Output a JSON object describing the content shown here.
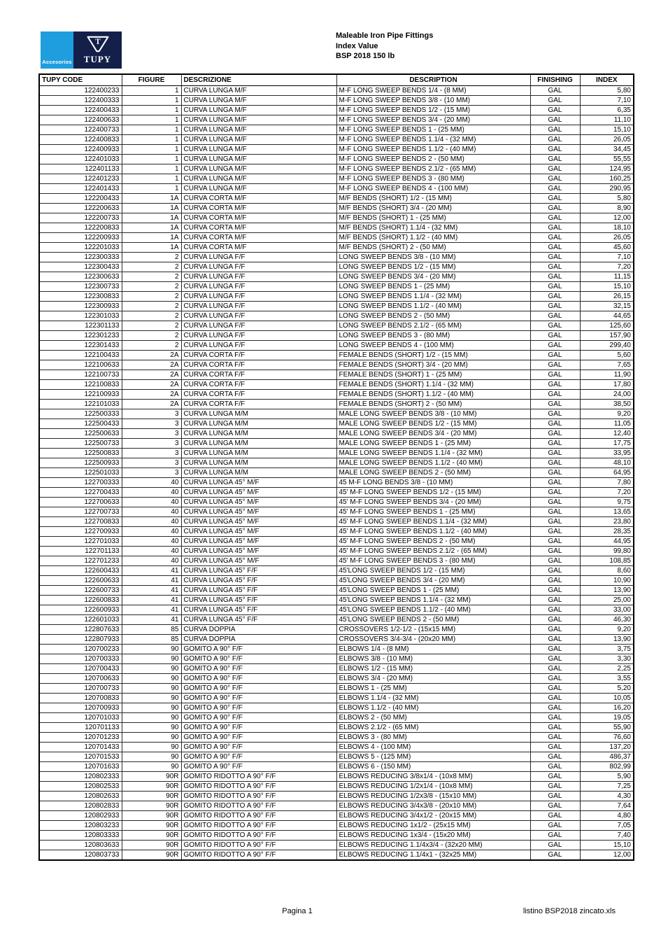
{
  "header": {
    "logo": {
      "accesorios_label": "Accesorios",
      "tupy_label": "TUPY"
    },
    "title_lines": [
      "Maleable Iron Pipe Fittings",
      "Index Value",
      "BSP 2018 150 lb"
    ]
  },
  "colors": {
    "logo_light_blue": "#1E9EDE",
    "logo_navy": "#14204A"
  },
  "table": {
    "headers": [
      "TUPY CODE",
      "FIGURE",
      "DESCRIZIONE",
      "DESCRIPTION",
      "FINISHING",
      "INDEX"
    ],
    "rows": [
      [
        "122400233",
        "1",
        "CURVA LUNGA M/F",
        "M-F LONG SWEEP BENDS 1/4 - (8 MM)",
        "GAL",
        "5,80"
      ],
      [
        "122400333",
        "1",
        "CURVA LUNGA M/F",
        "M-F LONG SWEEP BENDS 3/8 - (10 MM)",
        "GAL",
        "7,10"
      ],
      [
        "122400433",
        "1",
        "CURVA LUNGA M/F",
        "M-F LONG SWEEP BENDS 1/2 - (15 MM)",
        "GAL",
        "6,35"
      ],
      [
        "122400633",
        "1",
        "CURVA LUNGA M/F",
        "M-F LONG SWEEP BENDS 3/4 - (20 MM)",
        "GAL",
        "11,10"
      ],
      [
        "122400733",
        "1",
        "CURVA LUNGA M/F",
        "M-F LONG SWEEP BENDS 1 - (25 MM)",
        "GAL",
        "15,10"
      ],
      [
        "122400833",
        "1",
        "CURVA LUNGA M/F",
        "M-F LONG SWEEP BENDS 1.1/4 - (32 MM)",
        "GAL",
        "26,05"
      ],
      [
        "122400933",
        "1",
        "CURVA LUNGA M/F",
        "M-F LONG SWEEP BENDS 1.1/2 - (40 MM)",
        "GAL",
        "34,45"
      ],
      [
        "122401033",
        "1",
        "CURVA LUNGA M/F",
        "M-F LONG SWEEP BENDS 2 - (50 MM)",
        "GAL",
        "55,55"
      ],
      [
        "122401133",
        "1",
        "CURVA LUNGA M/F",
        "M-F LONG SWEEP BENDS 2.1/2 - (65 MM)",
        "GAL",
        "124,95"
      ],
      [
        "122401233",
        "1",
        "CURVA LUNGA M/F",
        "M-F LONG SWEEP BENDS 3 - (80 MM)",
        "GAL",
        "160,25"
      ],
      [
        "122401433",
        "1",
        "CURVA LUNGA M/F",
        "M-F LONG SWEEP BENDS 4 - (100 MM)",
        "GAL",
        "290,95"
      ],
      [
        "122200433",
        "1A",
        "CURVA CORTA M/F",
        "M/F BENDS (SHORT) 1/2 - (15 MM)",
        "GAL",
        "5,80"
      ],
      [
        "122200633",
        "1A",
        "CURVA CORTA M/F",
        "M/F BENDS (SHORT) 3/4 - (20 MM)",
        "GAL",
        "8,90"
      ],
      [
        "122200733",
        "1A",
        "CURVA CORTA M/F",
        "M/F BENDS (SHORT) 1 - (25 MM)",
        "GAL",
        "12,00"
      ],
      [
        "122200833",
        "1A",
        "CURVA CORTA M/F",
        "M/F BENDS (SHORT) 1.1/4 - (32 MM)",
        "GAL",
        "18,10"
      ],
      [
        "122200933",
        "1A",
        "CURVA CORTA M/F",
        "M/F BENDS (SHORT) 1.1/2 - (40 MM)",
        "GAL",
        "26,05"
      ],
      [
        "122201033",
        "1A",
        "CURVA CORTA M/F",
        "M/F BENDS (SHORT) 2 - (50 MM)",
        "GAL",
        "45,60"
      ],
      [
        "122300333",
        "2",
        "CURVA LUNGA F/F",
        "LONG SWEEP BENDS 3/8 - (10 MM)",
        "GAL",
        "7,10"
      ],
      [
        "122300433",
        "2",
        "CURVA LUNGA F/F",
        "LONG SWEEP BENDS 1/2 - (15 MM)",
        "GAL",
        "7,20"
      ],
      [
        "122300633",
        "2",
        "CURVA LUNGA F/F",
        "LONG SWEEP BENDS 3/4 - (20 MM)",
        "GAL",
        "11,15"
      ],
      [
        "122300733",
        "2",
        "CURVA LUNGA F/F",
        "LONG SWEEP BENDS 1 - (25 MM)",
        "GAL",
        "15,10"
      ],
      [
        "122300833",
        "2",
        "CURVA LUNGA F/F",
        "LONG SWEEP BENDS 1.1/4 - (32 MM)",
        "GAL",
        "26,15"
      ],
      [
        "122300933",
        "2",
        "CURVA LUNGA F/F",
        "LONG SWEEP BENDS 1.1/2 - (40 MM)",
        "GAL",
        "32,15"
      ],
      [
        "122301033",
        "2",
        "CURVA LUNGA F/F",
        "LONG SWEEP BENDS 2 - (50 MM)",
        "GAL",
        "44,65"
      ],
      [
        "122301133",
        "2",
        "CURVA LUNGA F/F",
        "LONG SWEEP BENDS 2.1/2 - (65 MM)",
        "GAL",
        "125,60"
      ],
      [
        "122301233",
        "2",
        "CURVA LUNGA F/F",
        "LONG SWEEP BENDS 3 - (80 MM)",
        "GAL",
        "157,90"
      ],
      [
        "122301433",
        "2",
        "CURVA LUNGA F/F",
        "LONG SWEEP BENDS 4 - (100 MM)",
        "GAL",
        "299,40"
      ],
      [
        "122100433",
        "2A",
        "CURVA CORTA F/F",
        "FEMALE BENDS (SHORT) 1/2 - (15 MM)",
        "GAL",
        "5,60"
      ],
      [
        "122100633",
        "2A",
        "CURVA CORTA F/F",
        "FEMALE BENDS (SHORT) 3/4 - (20 MM)",
        "GAL",
        "7,65"
      ],
      [
        "122100733",
        "2A",
        "CURVA CORTA F/F",
        "FEMALE BENDS (SHORT) 1 - (25 MM)",
        "GAL",
        "11,90"
      ],
      [
        "122100833",
        "2A",
        "CURVA CORTA F/F",
        "FEMALE BENDS (SHORT) 1.1/4 - (32 MM)",
        "GAL",
        "17,80"
      ],
      [
        "122100933",
        "2A",
        "CURVA CORTA F/F",
        "FEMALE BENDS (SHORT) 1.1/2 - (40 MM)",
        "GAL",
        "24,00"
      ],
      [
        "122101033",
        "2A",
        "CURVA CORTA F/F",
        "FEMALE BENDS (SHORT) 2 - (50 MM)",
        "GAL",
        "38,50"
      ],
      [
        "122500333",
        "3",
        "CURVA LUNGA M/M",
        "MALE LONG SWEEP BENDS 3/8 - (10 MM)",
        "GAL",
        "9,20"
      ],
      [
        "122500433",
        "3",
        "CURVA LUNGA M/M",
        "MALE LONG SWEEP BENDS 1/2 - (15 MM)",
        "GAL",
        "11,05"
      ],
      [
        "122500633",
        "3",
        "CURVA LUNGA M/M",
        "MALE LONG SWEEP BENDS 3/4 - (20 MM)",
        "GAL",
        "12,40"
      ],
      [
        "122500733",
        "3",
        "CURVA LUNGA M/M",
        "MALE LONG SWEEP BENDS 1 - (25 MM)",
        "GAL",
        "17,75"
      ],
      [
        "122500833",
        "3",
        "CURVA LUNGA M/M",
        "MALE LONG SWEEP BENDS 1.1/4 - (32 MM)",
        "GAL",
        "33,95"
      ],
      [
        "122500933",
        "3",
        "CURVA LUNGA M/M",
        "MALE LONG SWEEP BENDS 1.1/2 - (40 MM)",
        "GAL",
        "48,10"
      ],
      [
        "122501033",
        "3",
        "CURVA LUNGA M/M",
        "MALE LONG SWEEP BENDS 2 - (50 MM)",
        "GAL",
        "64,95"
      ],
      [
        "122700333",
        "40",
        "CURVA LUNGA 45° M/F",
        "45 M-F LONG BENDS 3/8 - (10 MM)",
        "GAL",
        "7,80"
      ],
      [
        "122700433",
        "40",
        "CURVA LUNGA 45° M/F",
        "45' M-F LONG SWEEP BENDS 1/2 - (15 MM)",
        "GAL",
        "7,20"
      ],
      [
        "122700633",
        "40",
        "CURVA LUNGA 45° M/F",
        "45' M-F LONG SWEEP BENDS 3/4 - (20 MM)",
        "GAL",
        "9,75"
      ],
      [
        "122700733",
        "40",
        "CURVA LUNGA 45° M/F",
        "45' M-F LONG SWEEP BENDS 1 - (25 MM)",
        "GAL",
        "13,65"
      ],
      [
        "122700833",
        "40",
        "CURVA LUNGA 45° M/F",
        "45' M-F LONG SWEEP BENDS 1.1/4 - (32 MM)",
        "GAL",
        "23,80"
      ],
      [
        "122700933",
        "40",
        "CURVA LUNGA 45° M/F",
        "45' M-F LONG SWEEP BENDS 1.1/2 - (40 MM)",
        "GAL",
        "28,35"
      ],
      [
        "122701033",
        "40",
        "CURVA LUNGA 45° M/F",
        "45' M-F LONG SWEEP BENDS 2 - (50 MM)",
        "GAL",
        "44,95"
      ],
      [
        "122701133",
        "40",
        "CURVA LUNGA 45° M/F",
        "45' M-F LONG SWEEP BENDS 2.1/2 - (65 MM)",
        "GAL",
        "99,80"
      ],
      [
        "122701233",
        "40",
        "CURVA LUNGA 45° M/F",
        "45' M-F LONG SWEEP BENDS 3 - (80 MM)",
        "GAL",
        "108,85"
      ],
      [
        "122600433",
        "41",
        "CURVA LUNGA 45° F/F",
        "45'LONG SWEEP BENDS 1/2 - (15 MM)",
        "GAL",
        "8,60"
      ],
      [
        "122600633",
        "41",
        "CURVA LUNGA 45° F/F",
        "45'LONG SWEEP BENDS 3/4 - (20 MM)",
        "GAL",
        "10,90"
      ],
      [
        "122600733",
        "41",
        "CURVA LUNGA 45° F/F",
        "45'LONG SWEEP BENDS 1 - (25 MM)",
        "GAL",
        "13,90"
      ],
      [
        "122600833",
        "41",
        "CURVA LUNGA 45° F/F",
        "45'LONG SWEEP BENDS 1.1/4 - (32 MM)",
        "GAL",
        "25,00"
      ],
      [
        "122600933",
        "41",
        "CURVA LUNGA 45° F/F",
        "45'LONG SWEEP BENDS 1.1/2 - (40 MM)",
        "GAL",
        "33,00"
      ],
      [
        "122601033",
        "41",
        "CURVA LUNGA 45° F/F",
        "45'LONG SWEEP BENDS 2 - (50 MM)",
        "GAL",
        "46,30"
      ],
      [
        "122807633",
        "85",
        "CURVA DOPPIA",
        "CROSSOVERS 1/2-1/2 - (15x15 MM)",
        "GAL",
        "9,20"
      ],
      [
        "122807933",
        "85",
        "CURVA DOPPIA",
        "CROSSOVERS 3/4-3/4 - (20x20 MM)",
        "GAL",
        "13,90"
      ],
      [
        "120700233",
        "90",
        "GOMITO A 90° F/F",
        "ELBOWS 1/4 - (8 MM)",
        "GAL",
        "3,75"
      ],
      [
        "120700333",
        "90",
        "GOMITO A 90° F/F",
        "ELBOWS 3/8 - (10 MM)",
        "GAL",
        "3,30"
      ],
      [
        "120700433",
        "90",
        "GOMITO A 90° F/F",
        "ELBOWS 1/2 - (15 MM)",
        "GAL",
        "2,25"
      ],
      [
        "120700633",
        "90",
        "GOMITO A 90° F/F",
        "ELBOWS 3/4 - (20 MM)",
        "GAL",
        "3,55"
      ],
      [
        "120700733",
        "90",
        "GOMITO A 90° F/F",
        "ELBOWS 1 - (25 MM)",
        "GAL",
        "5,20"
      ],
      [
        "120700833",
        "90",
        "GOMITO A 90° F/F",
        "ELBOWS 1.1/4 - (32 MM)",
        "GAL",
        "10,05"
      ],
      [
        "120700933",
        "90",
        "GOMITO A 90° F/F",
        "ELBOWS 1.1/2 - (40 MM)",
        "GAL",
        "16,20"
      ],
      [
        "120701033",
        "90",
        "GOMITO A 90° F/F",
        "ELBOWS 2 - (50 MM)",
        "GAL",
        "19,05"
      ],
      [
        "120701133",
        "90",
        "GOMITO A 90° F/F",
        "ELBOWS 2.1/2 - (65 MM)",
        "GAL",
        "55,90"
      ],
      [
        "120701233",
        "90",
        "GOMITO A 90° F/F",
        "ELBOWS 3 - (80 MM)",
        "GAL",
        "76,60"
      ],
      [
        "120701433",
        "90",
        "GOMITO A 90° F/F",
        "ELBOWS 4 - (100 MM)",
        "GAL",
        "137,20"
      ],
      [
        "120701533",
        "90",
        "GOMITO A 90° F/F",
        "ELBOWS 5 - (125 MM)",
        "GAL",
        "486,37"
      ],
      [
        "120701633",
        "90",
        "GOMITO A 90° F/F",
        "ELBOWS 6 - (150 MM)",
        "GAL",
        "802,99"
      ],
      [
        "120802333",
        "90R",
        "GOMITO RIDOTTO A 90° F/F",
        "ELBOWS REDUCING 3/8x1/4 - (10x8 MM)",
        "GAL",
        "5,90"
      ],
      [
        "120802533",
        "90R",
        "GOMITO RIDOTTO A 90° F/F",
        "ELBOWS REDUCING 1/2x1/4 - (10x8 MM)",
        "GAL",
        "7,25"
      ],
      [
        "120802633",
        "90R",
        "GOMITO RIDOTTO A 90° F/F",
        "ELBOWS REDUCING 1/2x3/8 - (15x10 MM)",
        "GAL",
        "4,30"
      ],
      [
        "120802833",
        "90R",
        "GOMITO RIDOTTO A 90° F/F",
        "ELBOWS REDUCING 3/4x3/8 - (20x10 MM)",
        "GAL",
        "7,64"
      ],
      [
        "120802933",
        "90R",
        "GOMITO RIDOTTO A 90° F/F",
        "ELBOWS REDUCING 3/4x1/2 - (20x15 MM)",
        "GAL",
        "4,80"
      ],
      [
        "120803233",
        "90R",
        "GOMITO RIDOTTO A 90° F/F",
        "ELBOWS REDUCING 1x1/2 - (25x15 MM)",
        "GAL",
        "7,05"
      ],
      [
        "120803333",
        "90R",
        "GOMITO RIDOTTO A 90° F/F",
        "ELBOWS REDUCING 1x3/4 - (15x20 MM)",
        "GAL",
        "7,40"
      ],
      [
        "120803633",
        "90R",
        "GOMITO RIDOTTO A 90° F/F",
        "ELBOWS REDUCING 1.1/4x3/4 - (32x20 MM)",
        "GAL",
        "15,10"
      ],
      [
        "120803733",
        "90R",
        "GOMITO RIDOTTO A 90° F/F",
        "ELBOWS REDUCING 1.1/4x1 - (32x25 MM)",
        "GAL",
        "12,00"
      ]
    ]
  },
  "footer": {
    "page_label": "Pagina 1",
    "filename_label": "listino BSP2018 zincato.xls"
  }
}
